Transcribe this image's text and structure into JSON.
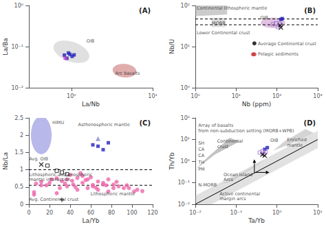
{
  "chart_data": [
    {
      "type": "scatter",
      "title": "(A)",
      "log": true,
      "grid": false,
      "xlabel": "La/Nb",
      "ylabel": "La/Ba",
      "xlim": [
        0.3,
        10
      ],
      "ylim": [
        0.01,
        1.0
      ],
      "xticks": [
        {
          "value": 1,
          "label": "10⁰"
        },
        {
          "value": 10,
          "label": "10¹"
        }
      ],
      "yticks": [
        {
          "value": 0.01,
          "label": "10⁻²"
        },
        {
          "value": 0.1,
          "label": "10⁻¹"
        },
        {
          "value": 1,
          "label": "10⁰"
        }
      ],
      "series": [
        {
          "type": "ellipse",
          "cx": 1.0,
          "cy": 0.075,
          "rx": 0.7,
          "ry": 0.055,
          "angle": -20,
          "color": "#cccccc"
        },
        {
          "type": "ellipse",
          "cx": 4.5,
          "cy": 0.026,
          "rx": 1.8,
          "ry": 0.012,
          "angle": -5,
          "color": "#cc7777"
        },
        {
          "type": "scatter",
          "marker": "square",
          "color": "#2222bb",
          "values": [
            [
              0.82,
              0.062
            ],
            [
              0.88,
              0.052
            ],
            [
              0.92,
              0.07
            ],
            [
              0.96,
              0.065
            ],
            [
              1.02,
              0.058
            ],
            [
              1.08,
              0.063
            ]
          ]
        },
        {
          "type": "scatter",
          "marker": "square",
          "color": "#cc44cc",
          "values": [
            [
              0.84,
              0.052
            ]
          ]
        }
      ],
      "annotations": [
        "OIB",
        "Arc basalts"
      ]
    },
    {
      "type": "scatter",
      "title": "(B)",
      "log": true,
      "grid": false,
      "xlabel": "Nb (ppm)",
      "ylabel": "Nb/U",
      "xlim": [
        1,
        1000
      ],
      "ylim": [
        1,
        100
      ],
      "xticks": [
        {
          "value": 1,
          "label": "10⁰"
        },
        {
          "value": 10,
          "label": "10¹"
        },
        {
          "value": 100,
          "label": "10²"
        },
        {
          "value": 1000,
          "label": "10³"
        }
      ],
      "yticks": [
        {
          "value": 1,
          "label": "10⁰"
        },
        {
          "value": 10,
          "label": "10¹"
        },
        {
          "value": 100,
          "label": "10²"
        }
      ],
      "series": [
        {
          "type": "polygon",
          "x": [
            1.0,
            1.0,
            2.0,
            4.0,
            6.0,
            6.0,
            1.0
          ],
          "y": [
            55,
            100,
            100,
            100,
            100,
            60,
            55
          ],
          "color": "#999999"
        },
        {
          "type": "polygon",
          "x": [
            2.5,
            2.5,
            5.5,
            5.5
          ],
          "y": [
            30,
            50,
            50,
            30
          ],
          "color": "#bbbbbb"
        },
        {
          "type": "ellipse",
          "cx": 80,
          "cy": 38,
          "rx": 80,
          "ry": 13,
          "angle": 0,
          "color": "#cc99cc"
        },
        {
          "type": "scatter",
          "marker": "circle",
          "color": "black",
          "values": [
            [
              28,
              12
            ]
          ]
        },
        {
          "type": "scatter",
          "marker": "circle",
          "color": "#cc3333",
          "values": [
            [
              28,
              6.5
            ]
          ]
        },
        {
          "type": "hline",
          "y": 47,
          "color": "black",
          "line_style": "dashed"
        },
        {
          "type": "hline",
          "y": 34,
          "color": "black",
          "line_style": "dashed"
        },
        {
          "type": "scatter",
          "marker": "open square",
          "color": "#9966cc",
          "values": [
            [
              80,
              35
            ],
            [
              95,
              37
            ],
            [
              105,
              30
            ],
            [
              115,
              36
            ]
          ]
        },
        {
          "type": "scatter",
          "marker": "square",
          "color": "#2222bb",
          "values": [
            [
              125,
              46
            ],
            [
              135,
              48
            ]
          ]
        },
        {
          "type": "scatter",
          "marker": "x",
          "color": "black",
          "values": [
            [
              120,
              33
            ],
            [
              125,
              29
            ]
          ]
        },
        {
          "type": "scatter",
          "marker": "circle",
          "color": "#cc3333",
          "values": [
            [
              26,
              6.5
            ]
          ]
        }
      ],
      "annotations": [
        "Continental lithospheric mantle",
        "MORB",
        "OIB",
        "Lower Continental crust",
        "Average Continental crust",
        "Pelagic sediments"
      ]
    },
    {
      "type": "scatter",
      "title": "(C)",
      "grid": false,
      "xlabel": "La/Yb",
      "ylabel": "Nb/La",
      "xlim": [
        0,
        120
      ],
      "ylim": [
        0,
        2.5
      ],
      "xticks": [
        0,
        20,
        40,
        60,
        80,
        100,
        120
      ],
      "yticks": [
        0,
        0.5,
        1,
        1.5,
        2,
        2.5
      ],
      "series": [
        {
          "type": "ellipse",
          "cx": 12,
          "cy": 2.0,
          "rx": 10,
          "ry": 0.55,
          "angle": 0,
          "color": "#8888dd"
        },
        {
          "type": "scatter",
          "marker": "circle",
          "color": "#ee66aa",
          "values": [
            [
              5,
              0.35
            ],
            [
              7,
              0.6
            ],
            [
              12,
              0.65
            ],
            [
              17,
              0.55
            ],
            [
              22,
              0.72
            ],
            [
              27,
              0.75
            ],
            [
              32,
              0.67
            ],
            [
              37,
              0.72
            ],
            [
              42,
              0.68
            ],
            [
              47,
              0.76
            ],
            [
              52,
              0.82
            ],
            [
              57,
              0.72
            ],
            [
              62,
              0.56
            ],
            [
              67,
              0.66
            ],
            [
              72,
              0.62
            ],
            [
              77,
              0.72
            ],
            [
              82,
              0.57
            ],
            [
              87,
              0.52
            ],
            [
              92,
              0.47
            ],
            [
              97,
              0.47
            ],
            [
              102,
              0.37
            ],
            [
              30,
              0.47
            ],
            [
              37,
              0.52
            ],
            [
              43,
              0.57
            ],
            [
              52,
              0.62
            ],
            [
              62,
              0.52
            ],
            [
              72,
              0.57
            ],
            [
              82,
              0.47
            ],
            [
              27,
              0.32
            ],
            [
              47,
              0.42
            ],
            [
              57,
              0.47
            ],
            [
              67,
              0.42
            ],
            [
              77,
              0.37
            ],
            [
              5,
              0.28
            ],
            [
              12,
              0.55
            ],
            [
              20,
              0.62
            ],
            [
              35,
              0.6
            ],
            [
              45,
              0.5
            ],
            [
              55,
              0.7
            ],
            [
              65,
              0.48
            ],
            [
              75,
              0.55
            ],
            [
              85,
              0.65
            ],
            [
              95,
              0.55
            ],
            [
              105,
              0.42
            ],
            [
              110,
              0.38
            ],
            [
              40,
              0.85
            ],
            [
              50,
              0.9
            ],
            [
              60,
              0.78
            ]
          ]
        },
        {
          "type": "scatter",
          "marker": "square",
          "color": "#2222bb",
          "values": [
            [
              62,
              1.72
            ],
            [
              67,
              1.68
            ],
            [
              72,
              1.58
            ],
            [
              77,
              1.78
            ]
          ]
        },
        {
          "type": "scatter",
          "marker": "triangle",
          "color": "#8888cc",
          "values": [
            [
              67,
              1.9
            ]
          ]
        },
        {
          "type": "scatter",
          "marker": "open square",
          "color": "black",
          "values": [
            [
              18,
              1.12
            ],
            [
              27,
              0.97
            ],
            [
              32,
              0.92
            ],
            [
              37,
              0.87
            ]
          ]
        },
        {
          "type": "scatter",
          "marker": "x",
          "color": "black",
          "values": [
            [
              12,
              1.15
            ]
          ]
        },
        {
          "type": "scatter",
          "marker": "plus",
          "color": "black",
          "values": [
            [
              32,
              0.13
            ]
          ]
        },
        {
          "type": "hline",
          "y": 1.0,
          "color": "black",
          "line_style": "dashed"
        },
        {
          "type": "hline",
          "y": 0.55,
          "color": "black",
          "line_style": "dashed"
        }
      ],
      "annotations": [
        "HIMU",
        "Asthenospheric mantle",
        "Lithospheric-asthenospheric\nmantle interaction",
        "Lithospheric mantle",
        "Avg. OIB",
        "Avg. Continental crust"
      ]
    },
    {
      "type": "scatter",
      "title": "(D)",
      "log": true,
      "grid": false,
      "xlabel": "Ta/Yb",
      "ylabel": "Th/Yb",
      "xlim": [
        0.01,
        10
      ],
      "ylim": [
        0.01,
        100
      ],
      "xticks": [
        {
          "value": 0.01,
          "label": "10⁻²"
        },
        {
          "value": 0.1,
          "label": "10⁻¹"
        },
        {
          "value": 1,
          "label": "10⁰"
        },
        {
          "value": 10,
          "label": "10¹"
        }
      ],
      "yticks": [
        {
          "value": 0.01,
          "label": "10⁻²"
        },
        {
          "value": 0.1,
          "label": "10⁻¹"
        },
        {
          "value": 1,
          "label": "10⁰"
        },
        {
          "value": 10,
          "label": "10¹"
        },
        {
          "value": 100,
          "label": "10²"
        }
      ],
      "series": [
        {
          "type": "band",
          "x": [
            0.01,
            10
          ],
          "y_low": [
            0.004,
            4
          ],
          "y_high": [
            0.025,
            25
          ],
          "color": "#aaaaaa"
        },
        {
          "type": "line",
          "x": [
            0.01,
            10
          ],
          "y": [
            0.01,
            10
          ],
          "color": "black"
        },
        {
          "type": "polygon",
          "x": [
            0.01,
            0.03,
            0.12,
            0.07,
            0.02
          ],
          "y": [
            0.4,
            2.0,
            8.0,
            12.0,
            1.5
          ],
          "color": "#888888"
        },
        {
          "type": "polygon",
          "x": [
            0.04,
            0.15,
            0.5,
            0.35,
            0.08
          ],
          "y": [
            0.08,
            0.3,
            1.2,
            0.7,
            0.12
          ],
          "color": "#bbbbbb"
        },
        {
          "type": "polygon",
          "x": [
            0.8,
            3,
            8,
            5,
            1.5
          ],
          "y": [
            3,
            8,
            20,
            30,
            8
          ],
          "color": "#aaaaaa"
        },
        {
          "type": "scatter",
          "marker": "square",
          "color": "#2222bb",
          "values": [
            [
              0.5,
              3.5
            ],
            [
              0.58,
              4.2
            ]
          ]
        },
        {
          "type": "scatter",
          "marker": "open square",
          "color": "#9966cc",
          "values": [
            [
              0.38,
              2.5
            ],
            [
              0.44,
              2.9
            ],
            [
              0.48,
              2.2
            ],
            [
              0.53,
              2.7
            ]
          ]
        },
        {
          "type": "scatter",
          "marker": "x",
          "color": "black",
          "values": [
            [
              0.44,
              2.0
            ],
            [
              0.5,
              1.8
            ]
          ]
        },
        {
          "type": "arrow",
          "x": [
            0.28,
            0.65
          ],
          "y": [
            0.3,
            0.3
          ],
          "color": "black"
        },
        {
          "type": "arrow",
          "x": [
            0.28,
            0.28
          ],
          "y": [
            0.3,
            1.2
          ],
          "color": "black"
        }
      ],
      "annotations": [
        "Array of basalts\nfrom non-subduction setting (MORB+WPB)",
        "SH",
        "CA",
        "CA",
        "TH",
        "PM",
        "N-MORB",
        "Continental\ncrust",
        "Ocean Island\nArcs",
        "OIB",
        "Enriched\nmantle",
        "Active continental\nmargin arcs"
      ]
    }
  ]
}
